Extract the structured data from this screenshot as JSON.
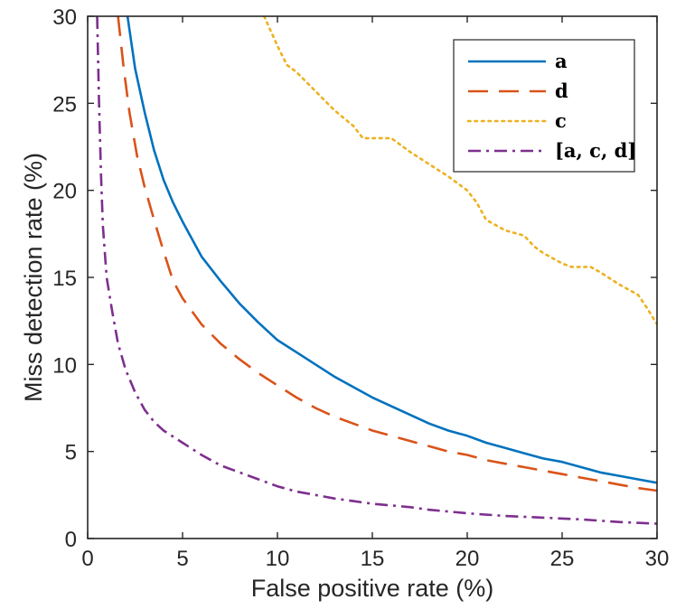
{
  "chart_data": {
    "type": "line",
    "title": "",
    "xlabel": "False positive rate (%)",
    "ylabel": "Miss detection rate (%)",
    "xlim": [
      0,
      30
    ],
    "ylim": [
      0,
      30
    ],
    "xticks": [
      0,
      5,
      10,
      15,
      20,
      25,
      30
    ],
    "yticks": [
      0,
      5,
      10,
      15,
      20,
      25,
      30
    ],
    "grid": false,
    "legend_position": "top-right",
    "series": [
      {
        "name": "a",
        "label": "a",
        "color": "#0072BD",
        "style": "solid",
        "points": [
          [
            2.1,
            30
          ],
          [
            2.5,
            27
          ],
          [
            3.0,
            24.5
          ],
          [
            3.5,
            22.3
          ],
          [
            4.0,
            20.6
          ],
          [
            4.5,
            19.3
          ],
          [
            5.0,
            18.2
          ],
          [
            6.0,
            16.2
          ],
          [
            7.0,
            14.8
          ],
          [
            8.0,
            13.5
          ],
          [
            9.0,
            12.4
          ],
          [
            10.0,
            11.4
          ],
          [
            11.0,
            10.7
          ],
          [
            12.0,
            10.0
          ],
          [
            13.0,
            9.3
          ],
          [
            14.0,
            8.7
          ],
          [
            15.0,
            8.1
          ],
          [
            16.0,
            7.6
          ],
          [
            17.0,
            7.1
          ],
          [
            18.0,
            6.6
          ],
          [
            19.0,
            6.2
          ],
          [
            20.0,
            5.9
          ],
          [
            21.0,
            5.5
          ],
          [
            22.0,
            5.2
          ],
          [
            23.0,
            4.9
          ],
          [
            24.0,
            4.6
          ],
          [
            25.0,
            4.4
          ],
          [
            26.0,
            4.1
          ],
          [
            27.0,
            3.8
          ],
          [
            28.0,
            3.6
          ],
          [
            29.0,
            3.4
          ],
          [
            30.0,
            3.2
          ]
        ]
      },
      {
        "name": "d",
        "label": "d",
        "color": "#D95319",
        "style": "dashed",
        "points": [
          [
            1.6,
            30
          ],
          [
            1.9,
            27
          ],
          [
            2.2,
            24.5
          ],
          [
            2.6,
            22
          ],
          [
            3.0,
            20.2
          ],
          [
            3.5,
            18.3
          ],
          [
            4.0,
            16.5
          ],
          [
            4.5,
            14.8
          ],
          [
            5.0,
            13.8
          ],
          [
            6.0,
            12.3
          ],
          [
            7.0,
            11.2
          ],
          [
            8.0,
            10.3
          ],
          [
            9.0,
            9.5
          ],
          [
            10.0,
            8.8
          ],
          [
            11.0,
            8.1
          ],
          [
            12.0,
            7.5
          ],
          [
            13.0,
            7.0
          ],
          [
            14.0,
            6.6
          ],
          [
            15.0,
            6.2
          ],
          [
            16.0,
            5.9
          ],
          [
            17.0,
            5.6
          ],
          [
            18.0,
            5.3
          ],
          [
            19.0,
            5.0
          ],
          [
            20.0,
            4.8
          ],
          [
            21.0,
            4.5
          ],
          [
            22.0,
            4.3
          ],
          [
            23.0,
            4.1
          ],
          [
            24.0,
            3.9
          ],
          [
            25.0,
            3.7
          ],
          [
            26.0,
            3.5
          ],
          [
            27.0,
            3.3
          ],
          [
            28.0,
            3.1
          ],
          [
            29.0,
            2.9
          ],
          [
            30.0,
            2.75
          ]
        ]
      },
      {
        "name": "c",
        "label": "c",
        "color": "#EDB120",
        "style": "dotted",
        "points": [
          [
            9.3,
            30
          ],
          [
            10.0,
            28.3
          ],
          [
            10.5,
            27.2
          ],
          [
            11.0,
            26.8
          ],
          [
            12.0,
            25.7
          ],
          [
            13.0,
            24.6
          ],
          [
            14.0,
            23.7
          ],
          [
            14.5,
            23.0
          ],
          [
            15.0,
            23.0
          ],
          [
            16.0,
            23.0
          ],
          [
            17.0,
            22.2
          ],
          [
            18.0,
            21.5
          ],
          [
            19.0,
            20.8
          ],
          [
            20.0,
            20.0
          ],
          [
            20.5,
            19.3
          ],
          [
            21.0,
            18.3
          ],
          [
            22.0,
            17.7
          ],
          [
            23.0,
            17.4
          ],
          [
            23.5,
            16.8
          ],
          [
            24.0,
            16.4
          ],
          [
            25.0,
            15.8
          ],
          [
            25.5,
            15.6
          ],
          [
            26.5,
            15.6
          ],
          [
            27.0,
            15.3
          ],
          [
            28.0,
            14.6
          ],
          [
            29.0,
            14.0
          ],
          [
            29.5,
            13.2
          ],
          [
            30.0,
            12.3
          ]
        ]
      },
      {
        "name": "[a,c,d]",
        "label": "[a, c, d]",
        "color": "#7E2F8E",
        "style": "dashdot",
        "points": [
          [
            0.5,
            30
          ],
          [
            0.6,
            25
          ],
          [
            0.7,
            21
          ],
          [
            0.8,
            18
          ],
          [
            1.0,
            15
          ],
          [
            1.3,
            13
          ],
          [
            1.6,
            11.2
          ],
          [
            2.0,
            9.7
          ],
          [
            2.5,
            8.4
          ],
          [
            3.0,
            7.4
          ],
          [
            3.5,
            6.7
          ],
          [
            4.0,
            6.2
          ],
          [
            5.0,
            5.5
          ],
          [
            6.0,
            4.8
          ],
          [
            7.0,
            4.2
          ],
          [
            8.0,
            3.8
          ],
          [
            9.0,
            3.4
          ],
          [
            10.0,
            3.0
          ],
          [
            11.0,
            2.7
          ],
          [
            12.0,
            2.5
          ],
          [
            13.0,
            2.3
          ],
          [
            14.0,
            2.15
          ],
          [
            15.0,
            2.0
          ],
          [
            16.0,
            1.9
          ],
          [
            17.0,
            1.8
          ],
          [
            18.0,
            1.65
          ],
          [
            19.0,
            1.55
          ],
          [
            20.0,
            1.45
          ],
          [
            22.0,
            1.3
          ],
          [
            24.0,
            1.2
          ],
          [
            26.0,
            1.1
          ],
          [
            28.0,
            0.95
          ],
          [
            30.0,
            0.85
          ]
        ]
      }
    ]
  }
}
